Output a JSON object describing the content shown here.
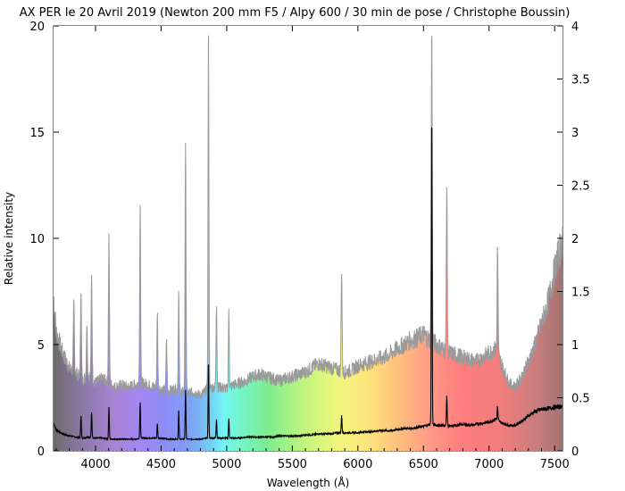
{
  "chart_data": {
    "type": "line",
    "title": "AX PER le 20 Avril 2019 (Newton 200 mm F5 / Alpy 600 / 30 min de pose / Christophe Boussin)",
    "xlabel": "Wavelength (Å)",
    "ylabel": "Relative intensity",
    "xlim": [
      3680,
      7560
    ],
    "ylim_left": [
      0,
      20
    ],
    "ylim_right": [
      0,
      4
    ],
    "xticks": [
      4000,
      4500,
      5000,
      5500,
      6000,
      6500,
      7000,
      7500
    ],
    "yticks_left": [
      0,
      5,
      10,
      15,
      20
    ],
    "yticks_right": [
      0,
      0.5,
      1,
      1.5,
      2,
      2.5,
      3,
      3.5,
      4
    ],
    "grid": "dotted",
    "series": [
      {
        "axis": "left",
        "render": "filled-spectrum",
        "baseline": [
          [
            3680,
            7.3
          ],
          [
            3700,
            5.6
          ],
          [
            3750,
            4.6
          ],
          [
            3800,
            3.9
          ],
          [
            3850,
            3.7
          ],
          [
            3900,
            3.3
          ],
          [
            3950,
            3.6
          ],
          [
            4000,
            3.2
          ],
          [
            4050,
            3.4
          ],
          [
            4100,
            3.2
          ],
          [
            4150,
            3.0
          ],
          [
            4200,
            3.1
          ],
          [
            4250,
            3.0
          ],
          [
            4300,
            3.1
          ],
          [
            4350,
            3.2
          ],
          [
            4400,
            3.1
          ],
          [
            4450,
            3.0
          ],
          [
            4500,
            2.9
          ],
          [
            4550,
            2.8
          ],
          [
            4600,
            2.9
          ],
          [
            4650,
            2.8
          ],
          [
            4700,
            2.7
          ],
          [
            4750,
            2.8
          ],
          [
            4800,
            2.6
          ],
          [
            4850,
            2.9
          ],
          [
            4900,
            3.0
          ],
          [
            4950,
            3.0
          ],
          [
            5000,
            2.9
          ],
          [
            5050,
            3.1
          ],
          [
            5100,
            3.2
          ],
          [
            5150,
            3.3
          ],
          [
            5200,
            3.5
          ],
          [
            5250,
            3.6
          ],
          [
            5300,
            3.5
          ],
          [
            5350,
            3.4
          ],
          [
            5400,
            3.3
          ],
          [
            5450,
            3.4
          ],
          [
            5500,
            3.5
          ],
          [
            5550,
            3.6
          ],
          [
            5600,
            3.7
          ],
          [
            5650,
            3.9
          ],
          [
            5700,
            4.1
          ],
          [
            5750,
            4.0
          ],
          [
            5800,
            3.9
          ],
          [
            5850,
            3.8
          ],
          [
            5900,
            3.7
          ],
          [
            5950,
            3.8
          ],
          [
            6000,
            4.0
          ],
          [
            6050,
            4.1
          ],
          [
            6100,
            4.2
          ],
          [
            6150,
            4.3
          ],
          [
            6200,
            4.4
          ],
          [
            6250,
            4.6
          ],
          [
            6300,
            4.8
          ],
          [
            6350,
            5.0
          ],
          [
            6400,
            5.2
          ],
          [
            6450,
            5.3
          ],
          [
            6500,
            5.5
          ],
          [
            6550,
            5.2
          ],
          [
            6600,
            5.0
          ],
          [
            6650,
            4.8
          ],
          [
            6700,
            4.6
          ],
          [
            6750,
            4.5
          ],
          [
            6800,
            4.4
          ],
          [
            6850,
            4.3
          ],
          [
            6900,
            4.2
          ],
          [
            6950,
            4.4
          ],
          [
            7000,
            4.6
          ],
          [
            7050,
            4.8
          ],
          [
            7100,
            4.0
          ],
          [
            7150,
            3.2
          ],
          [
            7200,
            3.0
          ],
          [
            7250,
            3.5
          ],
          [
            7300,
            4.2
          ],
          [
            7350,
            5.0
          ],
          [
            7400,
            6.0
          ],
          [
            7450,
            7.0
          ],
          [
            7500,
            8.5
          ],
          [
            7560,
            10.0
          ]
        ],
        "peaks": [
          [
            3835,
            7.0
          ],
          [
            3889,
            7.8
          ],
          [
            3934,
            6.0
          ],
          [
            3970,
            8.2
          ],
          [
            4102,
            10.1
          ],
          [
            4340,
            11.8
          ],
          [
            4471,
            6.5
          ],
          [
            4541,
            5.2
          ],
          [
            4634,
            7.5
          ],
          [
            4686,
            14.3
          ],
          [
            4861,
            20
          ],
          [
            4922,
            7.0
          ],
          [
            5016,
            6.5
          ],
          [
            5876,
            8.5
          ],
          [
            6563,
            20
          ],
          [
            6678,
            12.5
          ],
          [
            7065,
            9.5
          ]
        ]
      },
      {
        "axis": "right",
        "render": "line",
        "color": "#000000",
        "baseline": [
          [
            3680,
            0.26
          ],
          [
            3700,
            0.2
          ],
          [
            3750,
            0.16
          ],
          [
            3800,
            0.14
          ],
          [
            3850,
            0.13
          ],
          [
            3900,
            0.12
          ],
          [
            3950,
            0.13
          ],
          [
            4000,
            0.12
          ],
          [
            4050,
            0.12
          ],
          [
            4100,
            0.11
          ],
          [
            4150,
            0.11
          ],
          [
            4200,
            0.11
          ],
          [
            4250,
            0.11
          ],
          [
            4300,
            0.11
          ],
          [
            4350,
            0.12
          ],
          [
            4400,
            0.12
          ],
          [
            4450,
            0.12
          ],
          [
            4500,
            0.12
          ],
          [
            4550,
            0.11
          ],
          [
            4600,
            0.11
          ],
          [
            4650,
            0.11
          ],
          [
            4700,
            0.11
          ],
          [
            4750,
            0.11
          ],
          [
            4800,
            0.11
          ],
          [
            4850,
            0.12
          ],
          [
            4900,
            0.12
          ],
          [
            4950,
            0.12
          ],
          [
            5000,
            0.12
          ],
          [
            5050,
            0.12
          ],
          [
            5100,
            0.12
          ],
          [
            5150,
            0.13
          ],
          [
            5200,
            0.13
          ],
          [
            5250,
            0.13
          ],
          [
            5300,
            0.13
          ],
          [
            5350,
            0.13
          ],
          [
            5400,
            0.14
          ],
          [
            5450,
            0.14
          ],
          [
            5500,
            0.14
          ],
          [
            5550,
            0.14
          ],
          [
            5600,
            0.15
          ],
          [
            5650,
            0.15
          ],
          [
            5700,
            0.16
          ],
          [
            5750,
            0.16
          ],
          [
            5800,
            0.16
          ],
          [
            5850,
            0.17
          ],
          [
            5900,
            0.17
          ],
          [
            5950,
            0.17
          ],
          [
            6000,
            0.17
          ],
          [
            6050,
            0.18
          ],
          [
            6100,
            0.18
          ],
          [
            6150,
            0.19
          ],
          [
            6200,
            0.19
          ],
          [
            6250,
            0.19
          ],
          [
            6300,
            0.2
          ],
          [
            6350,
            0.21
          ],
          [
            6400,
            0.21
          ],
          [
            6450,
            0.22
          ],
          [
            6500,
            0.23
          ],
          [
            6550,
            0.25
          ],
          [
            6600,
            0.24
          ],
          [
            6650,
            0.24
          ],
          [
            6700,
            0.23
          ],
          [
            6750,
            0.24
          ],
          [
            6800,
            0.25
          ],
          [
            6850,
            0.24
          ],
          [
            6900,
            0.25
          ],
          [
            6950,
            0.26
          ],
          [
            7000,
            0.27
          ],
          [
            7050,
            0.3
          ],
          [
            7100,
            0.26
          ],
          [
            7150,
            0.24
          ],
          [
            7200,
            0.24
          ],
          [
            7250,
            0.28
          ],
          [
            7300,
            0.33
          ],
          [
            7350,
            0.37
          ],
          [
            7400,
            0.39
          ],
          [
            7450,
            0.4
          ],
          [
            7500,
            0.41
          ],
          [
            7560,
            0.42
          ]
        ],
        "peaks": [
          [
            3889,
            0.34
          ],
          [
            3970,
            0.36
          ],
          [
            4102,
            0.41
          ],
          [
            4340,
            0.46
          ],
          [
            4471,
            0.26
          ],
          [
            4634,
            0.38
          ],
          [
            4686,
            0.57
          ],
          [
            4861,
            0.85
          ],
          [
            4922,
            0.3
          ],
          [
            5016,
            0.3
          ],
          [
            5876,
            0.34
          ],
          [
            6563,
            3.22
          ],
          [
            6678,
            0.52
          ],
          [
            7065,
            0.42
          ]
        ]
      }
    ]
  }
}
